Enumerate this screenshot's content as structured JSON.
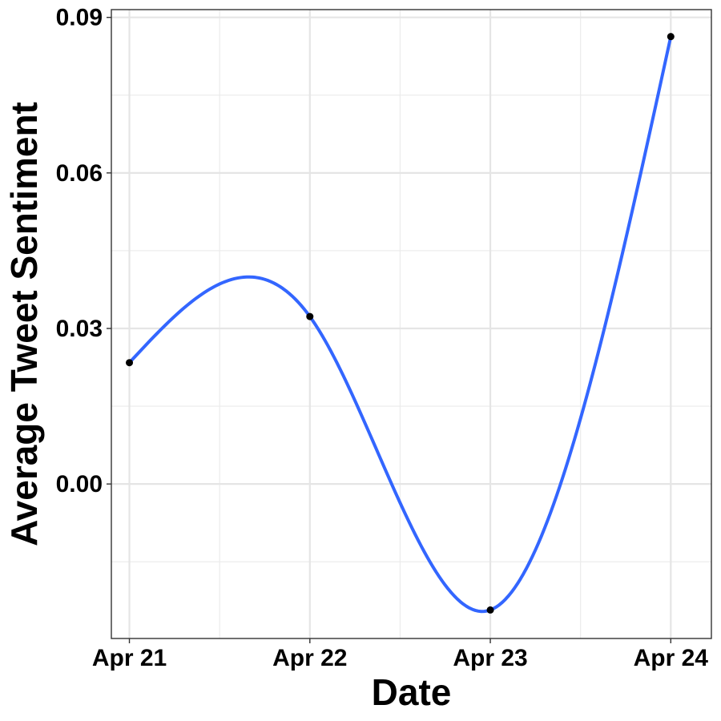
{
  "chart_data": {
    "type": "line",
    "title": "",
    "xlabel": "Date",
    "ylabel": "Average Tweet Sentiment",
    "x_tick_labels": [
      "Apr 21",
      "Apr 22",
      "Apr 23",
      "Apr 24"
    ],
    "y_ticks": [
      0.0,
      0.03,
      0.06,
      0.09
    ],
    "y_tick_labels": [
      "0.00",
      "0.03",
      "0.06",
      "0.09"
    ],
    "xlim": [
      "2020-04-20 21:36",
      "2020-04-24 05:24"
    ],
    "ylim": [
      -0.0298,
      0.0915
    ],
    "grid": true,
    "legend": "none",
    "series": [
      {
        "x": [
          "2020-04-21",
          "2020-04-22",
          "2020-04-23",
          "2020-04-24"
        ],
        "y": [
          0.0234,
          0.0323,
          -0.0243,
          0.0863
        ],
        "smoothed": true,
        "color": "#3366FF",
        "point_color": "#000000"
      }
    ]
  }
}
